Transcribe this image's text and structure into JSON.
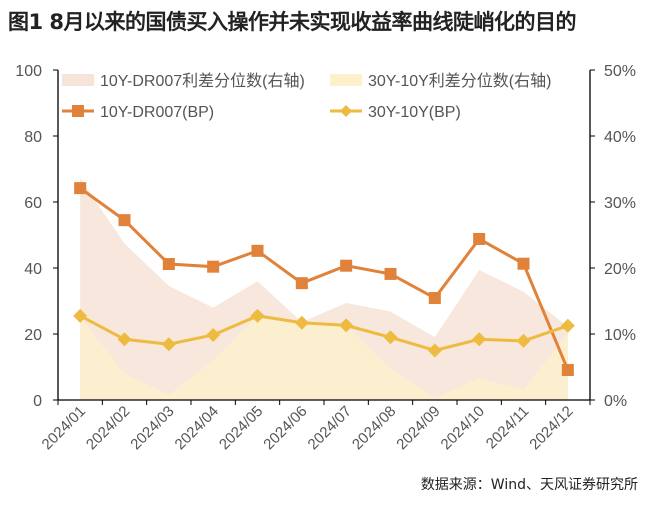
{
  "title": "图1  8月以来的国债买入操作并未实现收益率曲线陡峭化的目的",
  "source": "数据来源：Wind、天风证券研究所",
  "chart_data": {
    "type": "line",
    "categories": [
      "2024/01",
      "2024/02",
      "2024/03",
      "2024/04",
      "2024/05",
      "2024/06",
      "2024/07",
      "2024/08",
      "2024/09",
      "2024/10",
      "2024/11",
      "2024/12"
    ],
    "left_axis": {
      "ylim": [
        0,
        100
      ],
      "ticks": [
        "0",
        "20",
        "40",
        "60",
        "80",
        "100"
      ]
    },
    "right_axis": {
      "ylim": [
        0,
        50
      ],
      "ticks": [
        "0%",
        "10%",
        "20%",
        "30%",
        "40%",
        "50%"
      ]
    },
    "grid": false,
    "legend_position": "top",
    "series": [
      {
        "name": "10Y-DR007利差分位数(右轴)",
        "type": "area",
        "axis": "right",
        "color": "#f7e4d8",
        "values": [
          33.6,
          23.7,
          17.3,
          14.0,
          18.0,
          11.8,
          14.7,
          13.4,
          9.5,
          19.7,
          16.4,
          11.1
        ]
      },
      {
        "name": "30Y-10Y利差分位数(右轴)",
        "type": "area",
        "axis": "right",
        "color": "#fdf0cc",
        "values": [
          12.6,
          4.0,
          0.8,
          6.0,
          12.6,
          12.0,
          11.3,
          4.8,
          0.3,
          3.3,
          1.6,
          10.1
        ]
      },
      {
        "name": "10Y-DR007(BP)",
        "type": "line",
        "axis": "left",
        "marker": "square",
        "color": "#e0823a",
        "values": [
          64.2,
          54.5,
          41.2,
          40.4,
          45.2,
          35.4,
          40.7,
          38.2,
          30.9,
          48.8,
          41.3,
          9.1
        ]
      },
      {
        "name": "30Y-10Y(BP)",
        "type": "line",
        "axis": "left",
        "marker": "diamond",
        "color": "#edbb3f",
        "values": [
          25.5,
          18.4,
          16.9,
          19.7,
          25.5,
          23.4,
          22.6,
          19.0,
          15.0,
          18.4,
          17.9,
          22.5
        ]
      }
    ]
  }
}
